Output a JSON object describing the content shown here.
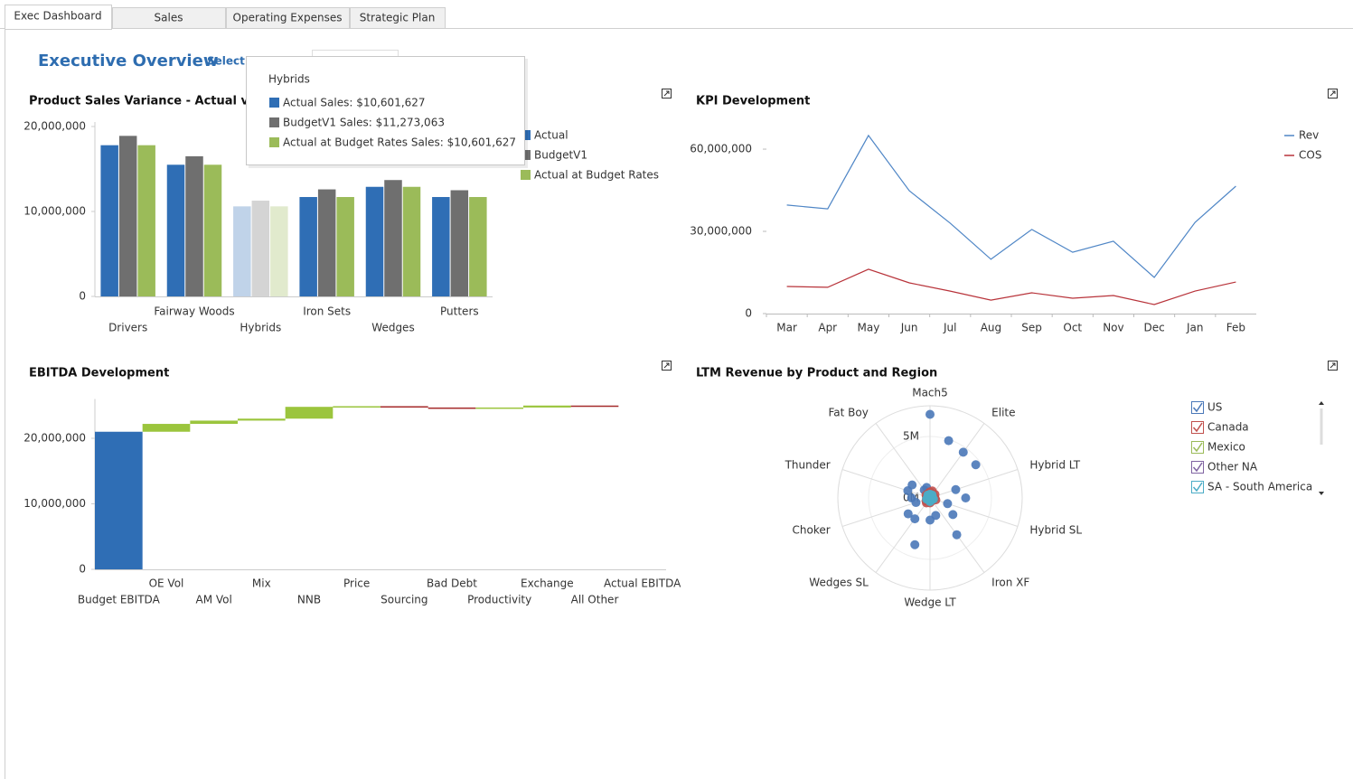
{
  "tabs": [
    "Exec Dashboard",
    "Sales",
    "Operating Expenses",
    "Strategic Plan"
  ],
  "header": {
    "title": "Executive Overview",
    "filter_label": "Select Filters"
  },
  "tooltip": {
    "title": "Hybrids",
    "items": [
      "Actual Sales: $10,601,627",
      "BudgetV1 Sales: $11,273,063",
      "Actual at Budget Rates Sales: $10,601,627"
    ]
  },
  "chart_data": [
    {
      "type": "bar",
      "title": "Product Sales Variance - Actual vs Budget",
      "categories": [
        "Drivers",
        "Fairway Woods",
        "Hybrids",
        "Iron Sets",
        "Wedges",
        "Putters"
      ],
      "series": [
        {
          "name": "Actual",
          "color": "#2f6eb5",
          "values": [
            17800000,
            15500000,
            10601627,
            11700000,
            12900000,
            11700000
          ]
        },
        {
          "name": "BudgetV1",
          "color": "#6f6f6f",
          "values": [
            18900000,
            16500000,
            11273063,
            12600000,
            13700000,
            12500000
          ]
        },
        {
          "name": "Actual at Budget Rates",
          "color": "#9bbb59",
          "values": [
            17800000,
            15500000,
            10601627,
            11700000,
            12900000,
            11700000
          ]
        }
      ],
      "ylim": [
        0,
        20000000
      ],
      "yticks": [
        0,
        {
          "value": 10000000,
          "label": "10,000,000"
        },
        {
          "value": 20000000,
          "label": "20,000,000"
        }
      ],
      "legend": "right"
    },
    {
      "type": "line",
      "title": "KPI Development",
      "categories": [
        "Mar",
        "Apr",
        "May",
        "Jun",
        "Jul",
        "Aug",
        "Sep",
        "Oct",
        "Nov",
        "Dec",
        "Jan",
        "Feb"
      ],
      "series": [
        {
          "name": "Rev",
          "color": "#4f86c6",
          "values": [
            39600000,
            38200000,
            65000000,
            44800000,
            33000000,
            19800000,
            30700000,
            22400000,
            26400000,
            13200000,
            33300000,
            46500000
          ]
        },
        {
          "name": "COS",
          "color": "#b8333a",
          "values": [
            9900000,
            9600000,
            16200000,
            11200000,
            8200000,
            4900000,
            7600000,
            5600000,
            6600000,
            3300000,
            8200000,
            11500000
          ]
        }
      ],
      "ylim": [
        0,
        70000000
      ],
      "yticks": [
        0,
        {
          "value": 30000000,
          "label": "30,000,000"
        },
        {
          "value": 60000000,
          "label": "60,000,000"
        }
      ],
      "legend": "right"
    },
    {
      "type": "waterfall",
      "title": "EBITDA Development",
      "categories": [
        "Budget EBITDA",
        "OE Vol",
        "AM Vol",
        "Mix",
        "NNB",
        "Price",
        "Sourcing",
        "Bad Debt",
        "Productivity",
        "Exchange",
        "All Other",
        "Actual EBITDA"
      ],
      "values": [
        21000000,
        1200000,
        500000,
        300000,
        1800000,
        100000,
        -200000,
        -100000,
        100000,
        300000,
        -100000,
        null
      ],
      "colors": {
        "total": "#2f6eb5",
        "increase": "#9bc53d",
        "decrease": "#a52a2a"
      },
      "ylim": [
        0,
        26000000
      ],
      "yticks": [
        0,
        {
          "value": 10000000,
          "label": "10,000,000"
        },
        {
          "value": 20000000,
          "label": "20,000,000"
        }
      ]
    },
    {
      "type": "polar_scatter",
      "title": "LTM Revenue by Product and Region",
      "categories": [
        "Mach5",
        null,
        "Elite",
        null,
        "Hybrid LT",
        null,
        "Hybrid SL",
        null,
        "Iron XF",
        null,
        "Wedge LT",
        null,
        "Wedges SL",
        null,
        "Choker",
        null,
        "Thunder",
        null,
        "Fat Boy",
        null
      ],
      "series": [
        {
          "name": "US",
          "color": "#4a78b8",
          "values": [
            6800000,
            4900000,
            4600000,
            4600000,
            2200000,
            2900000,
            1500000,
            2300000,
            3700000,
            1500000,
            1800000,
            4000000,
            2100000,
            2200000,
            1200000,
            1500000,
            1900000,
            1800000,
            800000,
            900000
          ]
        },
        {
          "name": "Canada",
          "color": "#c0504d",
          "values": [
            500000,
            600000,
            400000,
            500000,
            300000,
            400000,
            500000,
            300000,
            200000,
            300000,
            400000,
            300000,
            500000,
            400000,
            300000,
            200000,
            300000,
            400000,
            300000,
            400000
          ]
        },
        {
          "name": "Mexico",
          "color": "#9bbb59",
          "values": [
            200000,
            100000,
            200000,
            100000,
            200000,
            100000,
            100000,
            200000,
            100000,
            100000,
            200000,
            100000,
            100000,
            200000,
            100000,
            100000,
            200000,
            100000,
            100000,
            200000
          ]
        },
        {
          "name": "Other NA",
          "color": "#8064a2",
          "values": [
            100000,
            200000,
            100000,
            100000,
            100000,
            200000,
            100000,
            100000,
            200000,
            100000,
            100000,
            100000,
            200000,
            100000,
            100000,
            200000,
            100000,
            100000,
            100000,
            200000
          ]
        },
        {
          "name": "SA - South America",
          "color": "#4bacc6",
          "values": [
            300000,
            200000,
            300000,
            200000,
            100000,
            200000,
            300000,
            200000,
            100000,
            200000,
            300000,
            200000,
            100000,
            200000,
            300000,
            200000,
            100000,
            200000,
            300000,
            200000
          ]
        }
      ],
      "rlim": [
        0,
        7500000
      ],
      "rticks": [
        {
          "value": 0,
          "label": "0M"
        },
        {
          "value": 5000000,
          "label": "5M"
        }
      ],
      "legend": "right"
    }
  ]
}
